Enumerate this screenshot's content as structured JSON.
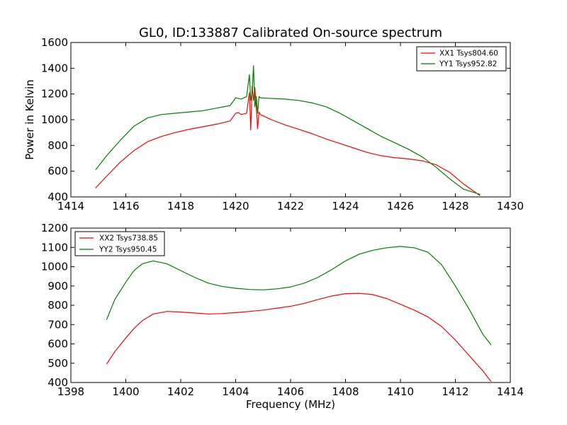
{
  "title": "GL0, ID:133887 Calibrated On-source spectrum",
  "chart_data": [
    {
      "type": "line",
      "ylabel": "Power in Kelvin",
      "xlabel": "",
      "xlim": [
        1414,
        1430
      ],
      "ylim": [
        400,
        1600
      ],
      "xticks": [
        "1414",
        "1416",
        "1418",
        "1420",
        "1422",
        "1424",
        "1426",
        "1428",
        "1430"
      ],
      "yticks": [
        "400",
        "600",
        "800",
        "1000",
        "1200",
        "1400",
        "1600"
      ],
      "legend_position": "top-right",
      "series": [
        {
          "name": "XX1 Tsys804.60",
          "color": "#ff0000",
          "x": [
            1414.9,
            1415.3,
            1415.8,
            1416.3,
            1416.8,
            1417.3,
            1417.8,
            1418.3,
            1418.8,
            1419.3,
            1419.8,
            1420.0,
            1420.1,
            1420.2,
            1420.3,
            1420.4,
            1420.5,
            1420.55,
            1420.6,
            1420.65,
            1420.7,
            1420.75,
            1420.8,
            1420.85,
            1420.9,
            1421.0,
            1421.3,
            1421.8,
            1422.3,
            1422.8,
            1423.3,
            1423.8,
            1424.3,
            1424.8,
            1425.3,
            1425.8,
            1426.3,
            1426.8,
            1427.3,
            1427.8,
            1428.3,
            1428.9
          ],
          "y": [
            470,
            560,
            670,
            760,
            830,
            870,
            900,
            925,
            945,
            965,
            990,
            1050,
            1055,
            1040,
            1045,
            1050,
            1210,
            920,
            1260,
            1150,
            1250,
            1100,
            930,
            1060,
            1040,
            1030,
            1000,
            960,
            925,
            890,
            850,
            815,
            780,
            745,
            720,
            705,
            695,
            680,
            650,
            590,
            500,
            410
          ]
        },
        {
          "name": "YY1 Tsys952.82",
          "color": "#007f00",
          "x": [
            1414.9,
            1415.3,
            1415.8,
            1416.3,
            1416.8,
            1417.3,
            1417.8,
            1418.3,
            1418.8,
            1419.3,
            1419.8,
            1420.0,
            1420.2,
            1420.4,
            1420.5,
            1420.55,
            1420.6,
            1420.65,
            1420.7,
            1420.75,
            1420.8,
            1420.85,
            1420.9,
            1421.3,
            1421.8,
            1422.3,
            1422.8,
            1423.3,
            1423.8,
            1424.3,
            1424.8,
            1425.3,
            1425.8,
            1426.3,
            1426.8,
            1427.3,
            1427.8,
            1428.3,
            1428.9
          ],
          "y": [
            610,
            720,
            840,
            950,
            1015,
            1040,
            1050,
            1060,
            1070,
            1090,
            1110,
            1170,
            1160,
            1180,
            1350,
            1150,
            1200,
            1420,
            1100,
            1180,
            1050,
            1180,
            1170,
            1165,
            1160,
            1150,
            1130,
            1100,
            1050,
            990,
            930,
            870,
            820,
            770,
            710,
            630,
            540,
            460,
            420
          ]
        }
      ]
    },
    {
      "type": "line",
      "ylabel": "",
      "xlabel": "Frequency (MHz)",
      "xlim": [
        1398,
        1414
      ],
      "ylim": [
        400,
        1200
      ],
      "xticks": [
        "1398",
        "1400",
        "1402",
        "1404",
        "1406",
        "1408",
        "1410",
        "1412",
        "1414"
      ],
      "yticks": [
        "400",
        "500",
        "600",
        "700",
        "800",
        "900",
        "1000",
        "1100",
        "1200"
      ],
      "legend_position": "top-left",
      "series": [
        {
          "name": "XX2 Tsys738.85",
          "color": "#ff0000",
          "x": [
            1399.3,
            1399.6,
            1400.0,
            1400.3,
            1400.6,
            1401.0,
            1401.5,
            1402.0,
            1402.5,
            1403.0,
            1403.5,
            1404.0,
            1404.5,
            1405.0,
            1405.5,
            1406.0,
            1406.5,
            1407.0,
            1407.5,
            1408.0,
            1408.5,
            1409.0,
            1409.5,
            1410.0,
            1410.5,
            1411.0,
            1411.5,
            1412.0,
            1412.5,
            1413.0,
            1413.3
          ],
          "y": [
            495,
            560,
            630,
            680,
            720,
            755,
            768,
            765,
            760,
            755,
            757,
            762,
            768,
            775,
            785,
            795,
            810,
            830,
            848,
            860,
            862,
            855,
            835,
            805,
            775,
            740,
            690,
            620,
            540,
            460,
            405
          ]
        },
        {
          "name": "YY2 Tsys950.45",
          "color": "#007f00",
          "x": [
            1399.3,
            1399.6,
            1400.0,
            1400.3,
            1400.6,
            1401.0,
            1401.5,
            1402.0,
            1402.5,
            1403.0,
            1403.5,
            1404.0,
            1404.5,
            1405.0,
            1405.5,
            1406.0,
            1406.5,
            1407.0,
            1407.5,
            1408.0,
            1408.5,
            1409.0,
            1409.5,
            1410.0,
            1410.5,
            1411.0,
            1411.5,
            1412.0,
            1412.5,
            1413.0,
            1413.3
          ],
          "y": [
            725,
            830,
            920,
            980,
            1015,
            1030,
            1015,
            980,
            945,
            915,
            898,
            888,
            882,
            880,
            885,
            895,
            915,
            945,
            985,
            1030,
            1065,
            1085,
            1098,
            1105,
            1098,
            1075,
            1010,
            900,
            780,
            650,
            595
          ]
        }
      ]
    }
  ]
}
